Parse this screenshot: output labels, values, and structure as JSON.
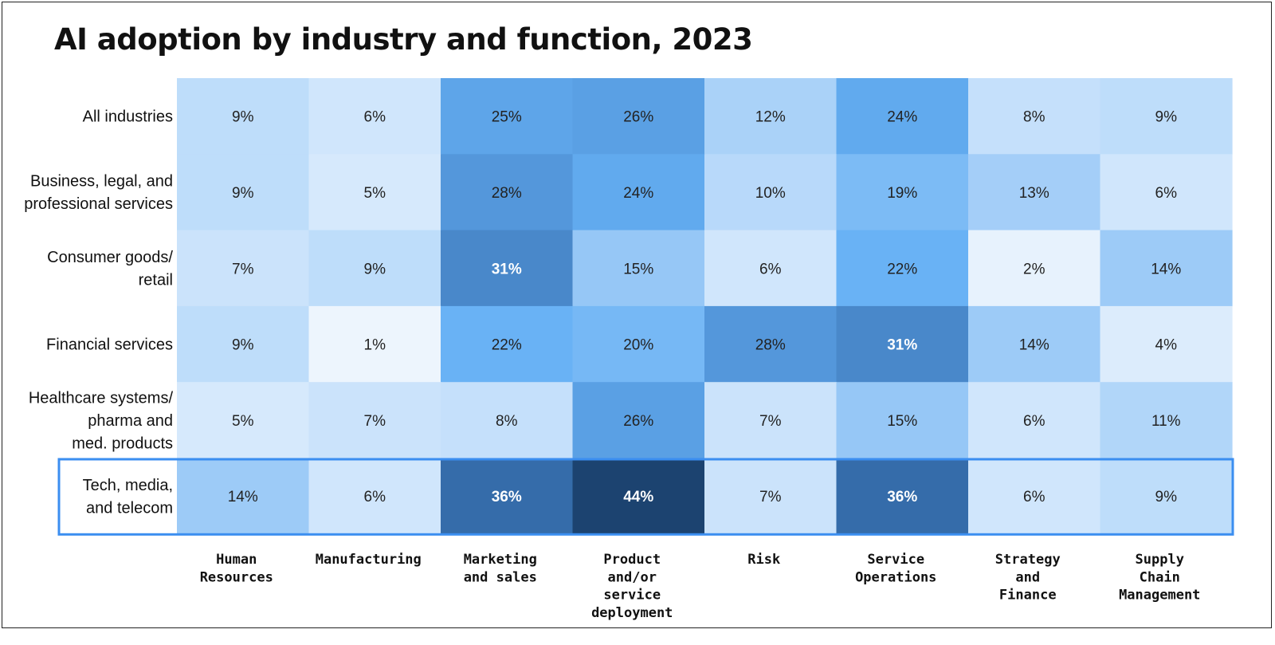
{
  "chart_data": {
    "type": "heatmap",
    "title": "AI adoption by industry and function, 2023",
    "rows": [
      [
        "All industries"
      ],
      [
        "Business, legal, and",
        "professional services"
      ],
      [
        "Consumer goods/",
        "retail"
      ],
      [
        "Financial services"
      ],
      [
        "Healthcare systems/",
        "pharma and",
        "med. products"
      ],
      [
        "Tech, media,",
        "and telecom"
      ]
    ],
    "columns": [
      [
        "Human",
        "Resources"
      ],
      [
        "Manufacturing"
      ],
      [
        "Marketing",
        "and sales"
      ],
      [
        "Product",
        "and/or",
        "service",
        "deployment"
      ],
      [
        "Risk"
      ],
      [
        "Service",
        "Operations"
      ],
      [
        "Strategy",
        "and",
        "Finance"
      ],
      [
        "Supply",
        "Chain",
        "Management"
      ]
    ],
    "values": [
      [
        9,
        6,
        25,
        26,
        12,
        24,
        8,
        9
      ],
      [
        9,
        5,
        28,
        24,
        10,
        19,
        13,
        6
      ],
      [
        7,
        9,
        31,
        15,
        6,
        22,
        2,
        14
      ],
      [
        9,
        1,
        22,
        20,
        28,
        31,
        14,
        4
      ],
      [
        5,
        7,
        8,
        26,
        7,
        15,
        6,
        11
      ],
      [
        14,
        6,
        36,
        44,
        7,
        36,
        6,
        9
      ]
    ],
    "value_format": "{v}%",
    "highlighted_row": 5,
    "highlight_color": "#3b8ef0",
    "color_scale": [
      "#edf5fd",
      "#c4e0fb",
      "#94c6f6",
      "#66b1f5",
      "#4e8fd3",
      "#3267a5",
      "#1c4370"
    ]
  }
}
